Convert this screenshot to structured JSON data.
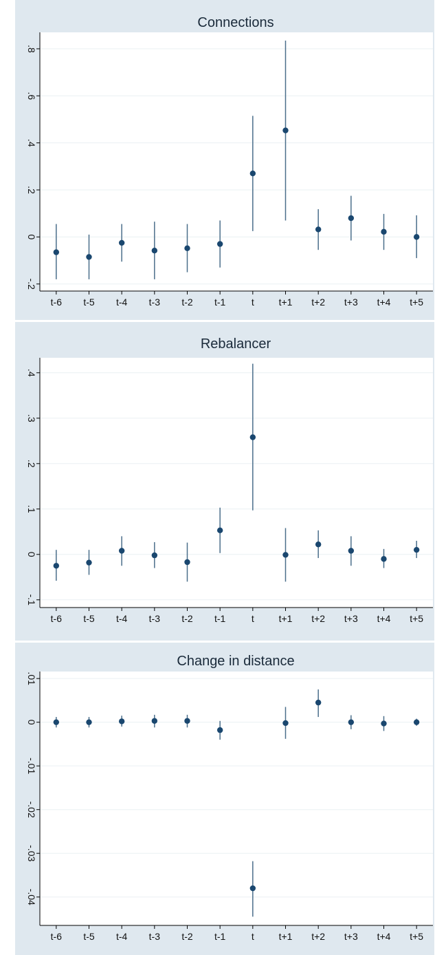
{
  "chart_data": [
    {
      "type": "scatter",
      "title": "Connections",
      "categories": [
        "t-6",
        "t-5",
        "t-4",
        "t-3",
        "t-2",
        "t-1",
        "t",
        "t+1",
        "t+2",
        "t+3",
        "t+4",
        "t+5"
      ],
      "values": [
        -0.065,
        -0.085,
        -0.025,
        -0.058,
        -0.048,
        -0.03,
        0.27,
        0.453,
        0.032,
        0.08,
        0.022,
        0.0
      ],
      "lower": [
        -0.18,
        -0.18,
        -0.105,
        -0.18,
        -0.15,
        -0.13,
        0.025,
        0.07,
        -0.055,
        -0.015,
        -0.055,
        -0.09
      ],
      "upper": [
        0.055,
        0.01,
        0.055,
        0.065,
        0.055,
        0.07,
        0.515,
        0.835,
        0.118,
        0.175,
        0.098,
        0.092
      ],
      "yticks": [
        -0.2,
        0,
        0.2,
        0.4,
        0.6,
        0.8
      ],
      "ytick_labels": [
        "-.2",
        "0",
        ".2",
        ".4",
        ".6",
        ".8"
      ],
      "ylim": [
        -0.23,
        0.87
      ],
      "grid": true,
      "marker_color": "#1a476f"
    },
    {
      "type": "scatter",
      "title": "Rebalancer",
      "categories": [
        "t-6",
        "t-5",
        "t-4",
        "t-3",
        "t-2",
        "t-1",
        "t",
        "t+1",
        "t+2",
        "t+3",
        "t+4",
        "t+5"
      ],
      "values": [
        -0.025,
        -0.018,
        0.008,
        -0.002,
        -0.017,
        0.053,
        0.258,
        -0.001,
        0.022,
        0.008,
        -0.01,
        0.01
      ],
      "lower": [
        -0.058,
        -0.045,
        -0.025,
        -0.03,
        -0.06,
        0.003,
        0.097,
        -0.06,
        -0.008,
        -0.025,
        -0.03,
        -0.008
      ],
      "upper": [
        0.01,
        0.01,
        0.04,
        0.027,
        0.026,
        0.103,
        0.42,
        0.058,
        0.053,
        0.04,
        0.012,
        0.03
      ],
      "yticks": [
        -0.1,
        0,
        0.1,
        0.2,
        0.3,
        0.4
      ],
      "ytick_labels": [
        "-.1",
        "0",
        ".1",
        ".2",
        ".3",
        ".4"
      ],
      "ylim": [
        -0.117,
        0.433
      ],
      "grid": true,
      "marker_color": "#1a476f"
    },
    {
      "type": "scatter",
      "title": "Change in distance",
      "categories": [
        "t-6",
        "t-5",
        "t-4",
        "t-3",
        "t-2",
        "t-1",
        "t",
        "t+1",
        "t+2",
        "t+3",
        "t+4",
        "t+5"
      ],
      "values": [
        0.0,
        0.0,
        0.0002,
        0.0003,
        0.0003,
        -0.0018,
        -0.038,
        -0.0002,
        0.0045,
        0.0,
        -0.0003,
        0.0
      ],
      "lower": [
        -0.0012,
        -0.0012,
        -0.001,
        -0.0012,
        -0.0012,
        -0.004,
        -0.0445,
        -0.0038,
        0.0012,
        -0.0016,
        -0.002,
        -0.0008
      ],
      "upper": [
        0.0012,
        0.0012,
        0.0015,
        0.0017,
        0.0017,
        0.0003,
        -0.0318,
        0.0035,
        0.0075,
        0.0016,
        0.0014,
        0.0008
      ],
      "yticks": [
        -0.04,
        -0.03,
        -0.02,
        -0.01,
        0,
        0.01
      ],
      "ytick_labels": [
        "-.04",
        "-.03",
        "-.02",
        "-.01",
        "0",
        ".01"
      ],
      "ylim": [
        -0.0465,
        0.0116
      ],
      "grid": true,
      "marker_color": "#1a476f"
    }
  ]
}
